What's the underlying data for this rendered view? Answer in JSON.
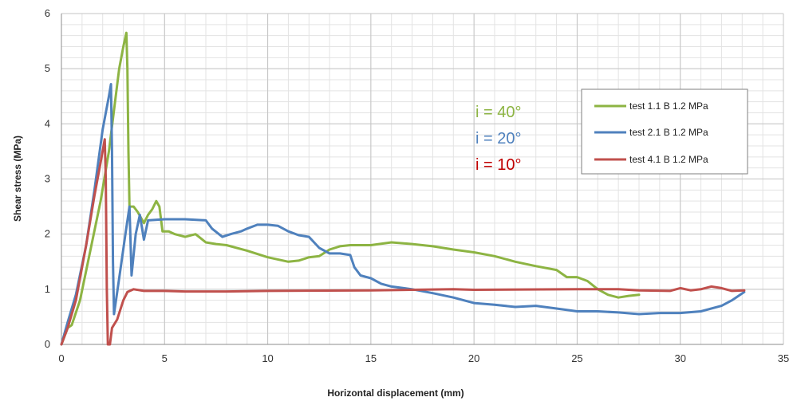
{
  "chart_data": {
    "type": "line",
    "xlabel": "Horizontal displacement (mm)",
    "ylabel": "Shear stress (MPa)",
    "xlim": [
      0,
      35
    ],
    "ylim": [
      0,
      6
    ],
    "x_ticks": [
      0,
      5,
      10,
      15,
      20,
      25,
      30,
      35
    ],
    "y_ticks": [
      0,
      1,
      2,
      3,
      4,
      5,
      6
    ],
    "x_tick_labels": [
      "0",
      "5",
      "10",
      "15",
      "20",
      "25",
      "30",
      "35"
    ],
    "y_tick_labels": [
      "0",
      "1",
      "2",
      "3",
      "4",
      "5",
      "6"
    ],
    "grid": true,
    "legend_position": "right",
    "series": [
      {
        "name": "test 1.1 B 1.2 MPa",
        "color": "#8db443",
        "points": [
          [
            0,
            0
          ],
          [
            0.3,
            0.3
          ],
          [
            0.5,
            0.35
          ],
          [
            0.9,
            0.8
          ],
          [
            1.4,
            1.7
          ],
          [
            1.9,
            2.6
          ],
          [
            2.3,
            3.5
          ],
          [
            2.6,
            4.4
          ],
          [
            2.8,
            5.0
          ],
          [
            3.0,
            5.4
          ],
          [
            3.15,
            5.65
          ],
          [
            3.2,
            5.0
          ],
          [
            3.25,
            3.5
          ],
          [
            3.3,
            2.5
          ],
          [
            3.5,
            2.5
          ],
          [
            3.7,
            2.4
          ],
          [
            4.0,
            2.2
          ],
          [
            4.2,
            2.35
          ],
          [
            4.4,
            2.45
          ],
          [
            4.6,
            2.6
          ],
          [
            4.75,
            2.5
          ],
          [
            4.9,
            2.05
          ],
          [
            5.2,
            2.05
          ],
          [
            5.5,
            2.0
          ],
          [
            6.0,
            1.95
          ],
          [
            6.5,
            2.0
          ],
          [
            7.0,
            1.85
          ],
          [
            7.5,
            1.82
          ],
          [
            8.0,
            1.8
          ],
          [
            9.0,
            1.7
          ],
          [
            10.0,
            1.58
          ],
          [
            11.0,
            1.5
          ],
          [
            11.5,
            1.52
          ],
          [
            12.0,
            1.58
          ],
          [
            12.5,
            1.6
          ],
          [
            13.0,
            1.72
          ],
          [
            13.5,
            1.78
          ],
          [
            14.0,
            1.8
          ],
          [
            15.0,
            1.8
          ],
          [
            16.0,
            1.85
          ],
          [
            17.0,
            1.82
          ],
          [
            18.0,
            1.78
          ],
          [
            19.0,
            1.72
          ],
          [
            20.0,
            1.67
          ],
          [
            21.0,
            1.6
          ],
          [
            22.0,
            1.5
          ],
          [
            23.0,
            1.42
          ],
          [
            24.0,
            1.35
          ],
          [
            24.5,
            1.22
          ],
          [
            25.0,
            1.22
          ],
          [
            25.5,
            1.15
          ],
          [
            26.0,
            1.0
          ],
          [
            26.5,
            0.9
          ],
          [
            27.0,
            0.85
          ],
          [
            27.5,
            0.88
          ],
          [
            28.0,
            0.9
          ]
        ]
      },
      {
        "name": "test 2.1 B 1.2 MPa",
        "color": "#4f81bd",
        "points": [
          [
            0,
            0
          ],
          [
            0.3,
            0.4
          ],
          [
            0.7,
            0.9
          ],
          [
            1.2,
            1.8
          ],
          [
            1.6,
            2.8
          ],
          [
            2.0,
            3.9
          ],
          [
            2.3,
            4.5
          ],
          [
            2.4,
            4.72
          ],
          [
            2.45,
            3.5
          ],
          [
            2.5,
            1.5
          ],
          [
            2.55,
            0.55
          ],
          [
            2.8,
            1.2
          ],
          [
            3.1,
            2.0
          ],
          [
            3.3,
            2.5
          ],
          [
            3.4,
            1.25
          ],
          [
            3.6,
            2.0
          ],
          [
            3.8,
            2.35
          ],
          [
            4.0,
            1.9
          ],
          [
            4.2,
            2.25
          ],
          [
            5.0,
            2.27
          ],
          [
            6.0,
            2.27
          ],
          [
            7.0,
            2.25
          ],
          [
            7.3,
            2.1
          ],
          [
            7.8,
            1.95
          ],
          [
            8.2,
            2.0
          ],
          [
            8.7,
            2.05
          ],
          [
            9.0,
            2.1
          ],
          [
            9.5,
            2.17
          ],
          [
            10.0,
            2.17
          ],
          [
            10.5,
            2.15
          ],
          [
            11.0,
            2.05
          ],
          [
            11.5,
            1.98
          ],
          [
            12.0,
            1.95
          ],
          [
            12.5,
            1.75
          ],
          [
            13.0,
            1.65
          ],
          [
            13.5,
            1.65
          ],
          [
            14.0,
            1.62
          ],
          [
            14.2,
            1.4
          ],
          [
            14.5,
            1.25
          ],
          [
            15.0,
            1.2
          ],
          [
            15.5,
            1.1
          ],
          [
            16.0,
            1.05
          ],
          [
            17.0,
            1.0
          ],
          [
            18.0,
            0.93
          ],
          [
            19.0,
            0.85
          ],
          [
            20.0,
            0.75
          ],
          [
            21.0,
            0.72
          ],
          [
            22.0,
            0.68
          ],
          [
            23.0,
            0.7
          ],
          [
            24.0,
            0.65
          ],
          [
            25.0,
            0.6
          ],
          [
            26.0,
            0.6
          ],
          [
            27.0,
            0.58
          ],
          [
            28.0,
            0.55
          ],
          [
            29.0,
            0.57
          ],
          [
            30.0,
            0.57
          ],
          [
            31.0,
            0.6
          ],
          [
            32.0,
            0.7
          ],
          [
            32.5,
            0.8
          ],
          [
            33.1,
            0.95
          ]
        ]
      },
      {
        "name": "test 4.1 B 1.2 MPa",
        "color": "#c0504d",
        "points": [
          [
            0,
            0
          ],
          [
            0.3,
            0.3
          ],
          [
            0.7,
            0.8
          ],
          [
            1.2,
            1.8
          ],
          [
            1.6,
            2.7
          ],
          [
            1.9,
            3.3
          ],
          [
            2.1,
            3.72
          ],
          [
            2.15,
            3.0
          ],
          [
            2.2,
            1.0
          ],
          [
            2.25,
            0
          ],
          [
            2.35,
            0
          ],
          [
            2.45,
            0.3
          ],
          [
            2.7,
            0.45
          ],
          [
            3.0,
            0.8
          ],
          [
            3.2,
            0.95
          ],
          [
            3.5,
            1.0
          ],
          [
            4.0,
            0.97
          ],
          [
            5.0,
            0.97
          ],
          [
            6.0,
            0.96
          ],
          [
            8.0,
            0.96
          ],
          [
            10.0,
            0.97
          ],
          [
            15.0,
            0.98
          ],
          [
            19.0,
            1.0
          ],
          [
            20.0,
            0.99
          ],
          [
            25.0,
            1.0
          ],
          [
            27.0,
            1.0
          ],
          [
            28.0,
            0.98
          ],
          [
            29.5,
            0.97
          ],
          [
            30.0,
            1.02
          ],
          [
            30.5,
            0.98
          ],
          [
            31.0,
            1.0
          ],
          [
            31.5,
            1.05
          ],
          [
            32.0,
            1.02
          ],
          [
            32.5,
            0.97
          ],
          [
            33.1,
            0.98
          ]
        ]
      }
    ],
    "annotations": [
      {
        "text": "i = 40°",
        "color": "#8db443"
      },
      {
        "text": "i = 20°",
        "color": "#4f81bd"
      },
      {
        "text": "i = 10°",
        "color": "#c00000"
      }
    ]
  }
}
